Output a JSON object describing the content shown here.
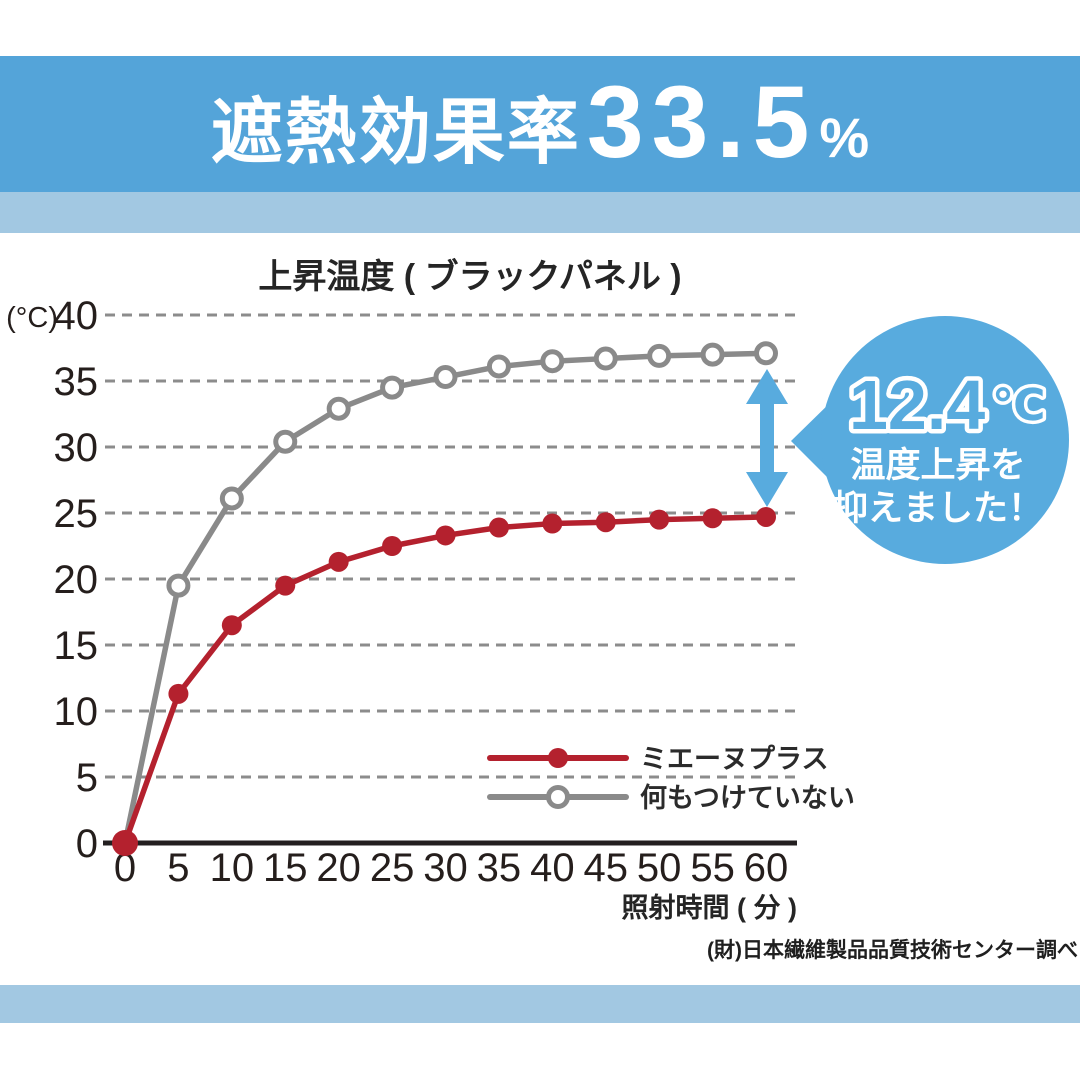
{
  "banner": {
    "prefix": "遮熱効果率",
    "value": "33.5",
    "unit": "%"
  },
  "chart_data": {
    "type": "line",
    "title": "上昇温度 ( ブラックパネル )",
    "y_unit_label": "(°C)",
    "xlabel": "照射時間 ( 分 )",
    "x": [
      0,
      5,
      10,
      15,
      20,
      25,
      30,
      35,
      40,
      45,
      50,
      55,
      60
    ],
    "ylim": [
      0,
      40
    ],
    "ytick_step": 5,
    "grid": "horizontal-dashed",
    "legend_position": "inside-lower-right",
    "series": [
      {
        "name": "ミエーヌプラス",
        "color": "#b4212e",
        "marker": "filled-circle",
        "values": [
          0,
          11.3,
          16.5,
          19.5,
          21.3,
          22.5,
          23.3,
          23.9,
          24.2,
          24.3,
          24.5,
          24.6,
          24.7
        ]
      },
      {
        "name": "何もつけていない",
        "color": "#8a8a8a",
        "marker": "open-circle",
        "values": [
          0,
          19.5,
          26.1,
          30.4,
          32.9,
          34.5,
          35.3,
          36.1,
          36.5,
          36.7,
          36.9,
          37.0,
          37.1
        ]
      }
    ]
  },
  "callout": {
    "value": "12.4",
    "unit": "℃",
    "line1": "温度上昇を",
    "line2": "抑えました！"
  },
  "source": "(財)日本繊維製品品質技術センター調べ",
  "colors": {
    "banner_blue": "#54a4d9",
    "light_blue_band": "#a2c8e2",
    "callout_blue": "#58abde",
    "series_red": "#b4212e",
    "series_gray": "#8a8a8a",
    "axis_black": "#231f20",
    "grid_gray": "#8c8c8c"
  }
}
